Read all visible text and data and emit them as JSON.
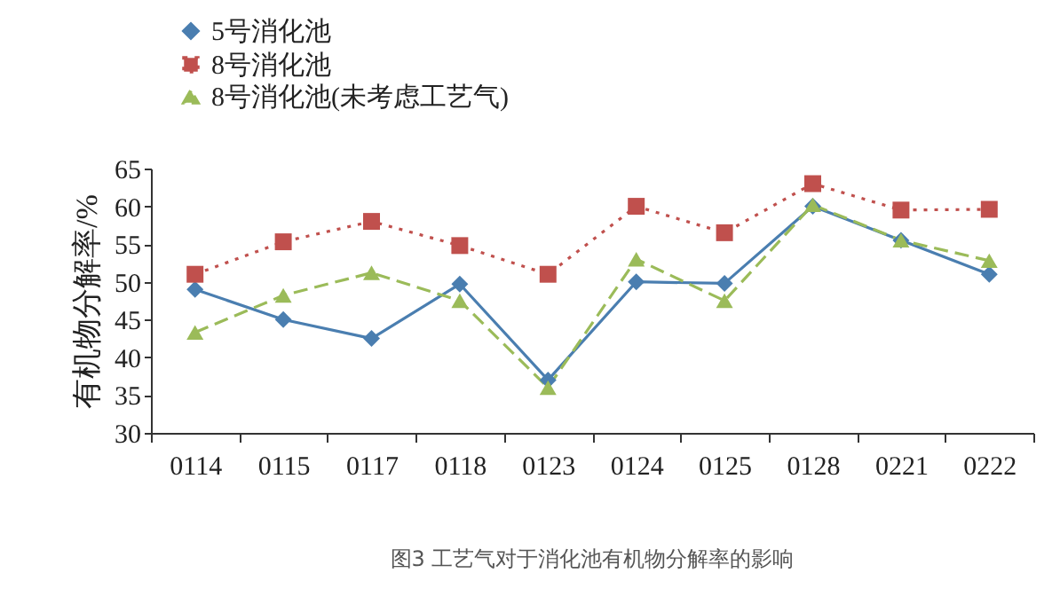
{
  "chart_data": {
    "type": "line",
    "ylabel": "有机物分解率/%",
    "categories": [
      "0114",
      "0115",
      "0117",
      "0118",
      "0123",
      "0124",
      "0125",
      "0128",
      "0221",
      "0222"
    ],
    "series": [
      {
        "name": "5号消化池",
        "color": "#4a7eb0",
        "marker": "diamond",
        "line_style": "solid",
        "values": [
          49,
          45,
          42.5,
          49.7,
          37,
          50,
          49.8,
          60,
          55.5,
          51
        ]
      },
      {
        "name": "8号消化池",
        "color": "#c0504d",
        "marker": "square",
        "line_style": "dotted",
        "values": [
          51,
          55.3,
          58,
          54.8,
          51,
          60,
          56.5,
          63,
          59.5,
          59.6
        ]
      },
      {
        "name": "8号消化池(未考虑工艺气)",
        "color": "#9bbb59",
        "marker": "triangle",
        "line_style": "dashed",
        "values": [
          43.3,
          48.2,
          51.2,
          47.5,
          36,
          53,
          47.5,
          60.2,
          55.5,
          52.8
        ]
      }
    ],
    "ylim": [
      30,
      65
    ],
    "yticks": [
      30,
      35,
      40,
      45,
      50,
      55,
      60,
      65
    ],
    "grid": false,
    "legend": "top left",
    "annotations": [
      "图3 工艺气对于消化池有机物分解率的影响"
    ]
  }
}
